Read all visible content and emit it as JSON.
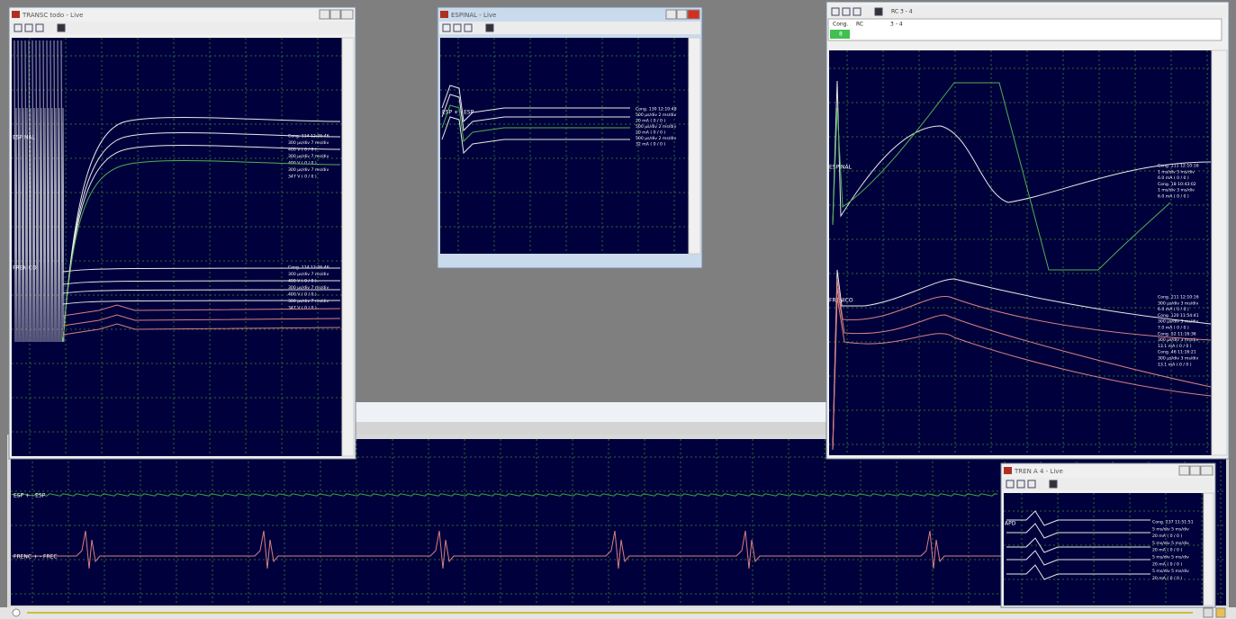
{
  "windows": [
    {
      "title": "TRANSC todo - Live",
      "channels": [
        "ESPINAL",
        "FRENICO"
      ],
      "annotations": [
        [
          "Cong. 114 12:06:46",
          "300 µs/div 7 ms/div",
          "400 V ( 0 / 0 )",
          "300 µs/div 7 ms/div",
          "400 V ( 0 / 0 )",
          "300 µs/div 7 ms/div",
          "347 V ( 0 / 0 )"
        ],
        [
          "Cong. 114 12:06:46",
          "300 µs/div 7 ms/div",
          "400 V ( 0 / 0 )",
          "300 µs/div 7 ms/div",
          "400 V ( 0 / 0 )",
          "300 µs/div 7 ms/div",
          "347 V ( 0 / 0 )"
        ]
      ]
    },
    {
      "title": "ESPINAL - Live",
      "channels": [
        "ESP + - ESP"
      ],
      "annotations": [
        [
          "Cong. 130 12:10:48",
          "500 µs/div 2 ms/div",
          "20 mA ( 0 / 0 )",
          "500 µs/div 2 ms/div",
          "20 mA ( 0 / 0 )",
          "500 µs/div 2 ms/div",
          "32 mA ( 0 / 0 )"
        ]
      ]
    },
    {
      "toolbar_text": "RC 3 - 4",
      "table": {
        "header": [
          "Cong.",
          "RC",
          "3 - 4"
        ],
        "row": [
          "8"
        ]
      },
      "channels": [
        "ESPINAL",
        "FRENICO"
      ],
      "annotations": [
        [
          "Cong. 211 12:10:16",
          "1 ms/div 3 ms/div",
          "6.0 mA ( 0 / 0 )",
          "Cong. 18 10:43:02",
          "1 ms/div 3 ms/div",
          "6.0 mA ( 0 / 0 )"
        ],
        [
          "Cong. 211 12:10:16",
          "300 µs/div 3 ms/div",
          "6.0 mA ( 0 / 0 )",
          "Cong. 120 11:54:41",
          "300 µs/div 3 ms/div",
          "7.0 mA ( 0 / 0 )",
          "Cong. 52 11:16:36",
          "300 µs/div 3 ms/div",
          "13.1 mA ( 0 / 0 )",
          "Cong. 46 11:16:21",
          "300 µs/div 3 ms/div",
          "13.1 mA ( 0 / 0 )"
        ]
      ]
    },
    {
      "title": "TREN A 4 - Live",
      "channels": [
        "APD"
      ],
      "annotations": [
        [
          "Cong. 237 11:51:51",
          "5 ms/div 5 ms/div",
          "20 mA ( 0 / 0 )",
          "5 ms/div 5 ms/div",
          "20 mA ( 0 / 0 )",
          "5 ms/div 5 ms/div",
          "20 mA ( 0 / 0 )",
          "5 ms/div 5 ms/div",
          "20 mA ( 0 / 0 )"
        ]
      ]
    }
  ],
  "bottom_panel": {
    "channels": [
      "ESP + - ESP",
      "FRENC + - FREC"
    ]
  }
}
